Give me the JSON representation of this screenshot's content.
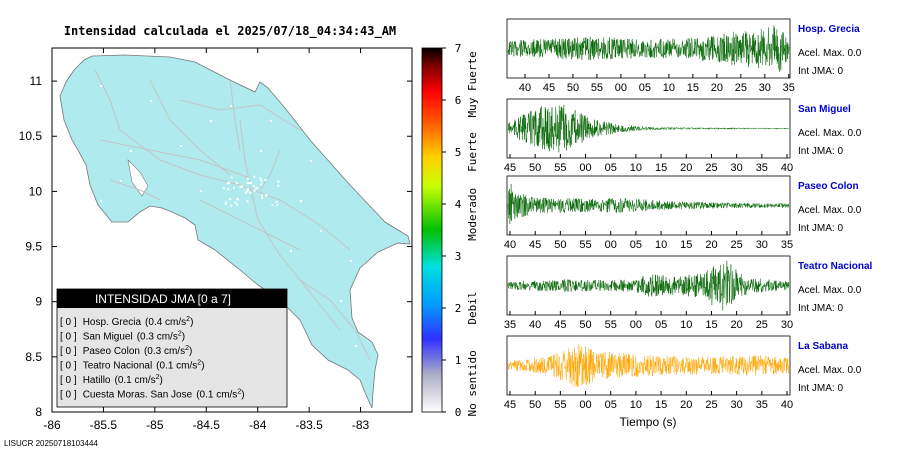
{
  "title": "Intensidad calculada el 2025/07/18_04:34:43_AM",
  "footer_id": "LISUCR 20250718103444",
  "map": {
    "x_ticks": [
      "-86",
      "-85.5",
      "-85",
      "-84.5",
      "-84",
      "-83.5",
      "-83"
    ],
    "y_ticks": [
      "11",
      "10.5",
      "10",
      "9.5",
      "9",
      "8.5",
      "8"
    ],
    "xlim": [
      -86,
      -82.5
    ],
    "ylim": [
      8,
      11.3
    ],
    "land_color": "#aeeaee"
  },
  "legend": {
    "header": "INTENSIDAD JMA [0 a 7]",
    "entries": [
      {
        "value": "[ 0 ]",
        "station": "Hosp. Grecia",
        "accel": "(0.4 cm/s",
        "sup": "2",
        "close": ")"
      },
      {
        "value": "[ 0 ]",
        "station": "San Miguel",
        "accel": "(0.3 cm/s",
        "sup": "2",
        "close": ")"
      },
      {
        "value": "[ 0 ]",
        "station": "Paseo Colon",
        "accel": "(0.3 cm/s",
        "sup": "2",
        "close": ")"
      },
      {
        "value": "[ 0 ]",
        "station": "Teatro Nacional",
        "accel": "(0.1 cm/s",
        "sup": "2",
        "close": ")"
      },
      {
        "value": "[ 0 ]",
        "station": "Hatillo",
        "accel": "(0.1 cm/s",
        "sup": "2",
        "close": ")"
      },
      {
        "value": "[ 0 ]",
        "station": "Cuesta Moras. San Jose",
        "accel": "(0.1 cm/s",
        "sup": "2",
        "close": ")"
      }
    ]
  },
  "colorbar": {
    "ticks": [
      "7",
      "6",
      "5",
      "4",
      "3",
      "2",
      "1",
      "0"
    ],
    "labels": [
      "Muy Fuerte",
      "Fuerte",
      "Moderado",
      "Debil",
      "No sentido"
    ]
  },
  "chart_data": [
    {
      "type": "line",
      "title": "Hosp. Grecia",
      "accel": "Acel. Max. 0.0",
      "jma": "Int JMA: 0",
      "color": "#006400",
      "x_ticks": [
        "40",
        "45",
        "50",
        "55",
        "00",
        "05",
        "10",
        "15",
        "20",
        "25",
        "30",
        "35"
      ],
      "envelope": [
        [
          0,
          0.3
        ],
        [
          0.1,
          0.35
        ],
        [
          0.3,
          0.45
        ],
        [
          0.5,
          0.35
        ],
        [
          0.65,
          0.4
        ],
        [
          0.75,
          0.55
        ],
        [
          0.85,
          0.7
        ],
        [
          0.93,
          0.8
        ],
        [
          0.97,
          1.0
        ],
        [
          1.0,
          0.4
        ]
      ]
    },
    {
      "type": "line",
      "title": "San Miguel",
      "accel": "Acel. Max. 0.0",
      "jma": "Int JMA: 0",
      "color": "#006400",
      "x_ticks": [
        "45",
        "50",
        "55",
        "00",
        "05",
        "10",
        "15",
        "20",
        "25",
        "30",
        "35",
        "40"
      ],
      "envelope": [
        [
          0,
          0.2
        ],
        [
          0.05,
          0.5
        ],
        [
          0.12,
          0.85
        ],
        [
          0.18,
          1.0
        ],
        [
          0.24,
          0.7
        ],
        [
          0.3,
          0.35
        ],
        [
          0.4,
          0.15
        ],
        [
          0.5,
          0.06
        ],
        [
          0.7,
          0.03
        ],
        [
          1.0,
          0.02
        ]
      ]
    },
    {
      "type": "line",
      "title": "Paseo Colon",
      "accel": "Acel. Max. 0.0",
      "jma": "Int JMA: 0",
      "color": "#006400",
      "x_ticks": [
        "40",
        "45",
        "50",
        "55",
        "00",
        "05",
        "10",
        "15",
        "20",
        "25",
        "30",
        "35"
      ],
      "envelope": [
        [
          0,
          1.0
        ],
        [
          0.03,
          0.5
        ],
        [
          0.1,
          0.3
        ],
        [
          0.3,
          0.25
        ],
        [
          0.4,
          0.3
        ],
        [
          0.6,
          0.15
        ],
        [
          0.8,
          0.1
        ],
        [
          1.0,
          0.08
        ]
      ]
    },
    {
      "type": "line",
      "title": "Teatro Nacional",
      "accel": "Acel. Max. 0.0",
      "jma": "Int JMA: 0",
      "color": "#006400",
      "x_ticks": [
        "35",
        "40",
        "45",
        "50",
        "55",
        "00",
        "05",
        "10",
        "15",
        "20",
        "25",
        "30"
      ],
      "envelope": [
        [
          0,
          0.15
        ],
        [
          0.2,
          0.25
        ],
        [
          0.35,
          0.2
        ],
        [
          0.45,
          0.25
        ],
        [
          0.5,
          0.45
        ],
        [
          0.6,
          0.35
        ],
        [
          0.7,
          0.5
        ],
        [
          0.74,
          0.9
        ],
        [
          0.78,
          1.0
        ],
        [
          0.82,
          0.5
        ],
        [
          0.86,
          0.3
        ],
        [
          1.0,
          0.15
        ]
      ]
    },
    {
      "type": "line",
      "title": "La Sabana",
      "accel": "Acel. Max. 0.0",
      "jma": "Int JMA: 0",
      "color": "#ffa500",
      "x_ticks": [
        "45",
        "50",
        "55",
        "00",
        "05",
        "10",
        "15",
        "20",
        "25",
        "30",
        "35",
        "40"
      ],
      "envelope": [
        [
          0,
          0.15
        ],
        [
          0.15,
          0.35
        ],
        [
          0.25,
          0.9
        ],
        [
          0.32,
          0.55
        ],
        [
          0.45,
          0.45
        ],
        [
          0.6,
          0.35
        ],
        [
          0.75,
          0.35
        ],
        [
          0.9,
          0.4
        ],
        [
          1.0,
          0.3
        ]
      ]
    }
  ],
  "xlabel": "Tiempo (s)"
}
